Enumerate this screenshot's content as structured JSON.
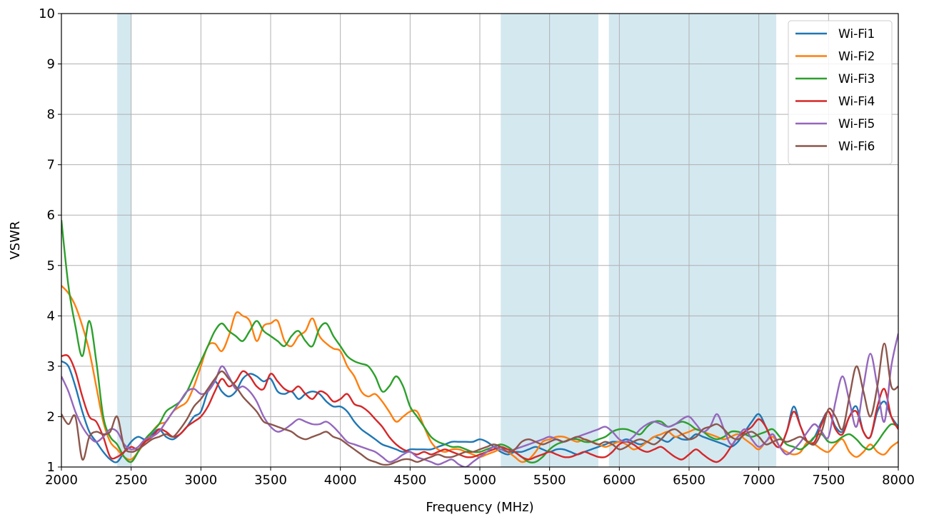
{
  "chart_data": {
    "type": "line",
    "title": "",
    "xlabel": "Frequency (MHz)",
    "ylabel": "VSWR",
    "xlim": [
      2000,
      8000
    ],
    "ylim": [
      1,
      10
    ],
    "xticks": [
      2000,
      2500,
      3000,
      3500,
      4000,
      4500,
      5000,
      5500,
      6000,
      6500,
      7000,
      7500,
      8000
    ],
    "yticks": [
      1,
      2,
      3,
      4,
      5,
      6,
      7,
      8,
      9,
      10
    ],
    "xtick_labels": [
      "2000",
      "2500",
      "3000",
      "3500",
      "4000",
      "4500",
      "5000",
      "5500",
      "6000",
      "6500",
      "7000",
      "7500",
      "8000"
    ],
    "ytick_labels": [
      "1",
      "2",
      "3",
      "4",
      "5",
      "6",
      "7",
      "8",
      "9",
      "10"
    ],
    "grid": true,
    "legend_position": "top-right",
    "shaded_bands": [
      {
        "from": 2400,
        "to": 2500,
        "color": "#d4e8f0"
      },
      {
        "from": 5150,
        "to": 5850,
        "color": "#d4e8f0"
      },
      {
        "from": 5925,
        "to": 7125,
        "color": "#d4e8f0"
      }
    ],
    "x": [
      2000,
      2050,
      2100,
      2150,
      2200,
      2250,
      2300,
      2350,
      2400,
      2450,
      2500,
      2550,
      2600,
      2650,
      2700,
      2750,
      2800,
      2850,
      2900,
      2950,
      3000,
      3050,
      3100,
      3150,
      3200,
      3250,
      3300,
      3350,
      3400,
      3450,
      3500,
      3550,
      3600,
      3650,
      3700,
      3750,
      3800,
      3850,
      3900,
      3950,
      4000,
      4050,
      4100,
      4150,
      4200,
      4250,
      4300,
      4350,
      4400,
      4450,
      4500,
      4550,
      4600,
      4650,
      4700,
      4750,
      4800,
      4850,
      4900,
      4950,
      5000,
      5050,
      5100,
      5150,
      5200,
      5250,
      5300,
      5350,
      5400,
      5450,
      5500,
      5550,
      5600,
      5650,
      5700,
      5750,
      5800,
      5850,
      5900,
      5950,
      6000,
      6050,
      6100,
      6150,
      6200,
      6250,
      6300,
      6350,
      6400,
      6450,
      6500,
      6550,
      6600,
      6650,
      6700,
      6750,
      6800,
      6850,
      6900,
      6950,
      7000,
      7050,
      7100,
      7150,
      7200,
      7250,
      7300,
      7350,
      7400,
      7450,
      7500,
      7550,
      7600,
      7650,
      7700,
      7750,
      7800,
      7850,
      7900,
      7950,
      8000
    ],
    "series": [
      {
        "name": "Wi-Fi1",
        "color": "#1f77b4",
        "values": [
          3.1,
          3.0,
          2.6,
          2.1,
          1.7,
          1.5,
          1.3,
          1.15,
          1.1,
          1.3,
          1.5,
          1.6,
          1.55,
          1.65,
          1.75,
          1.6,
          1.55,
          1.65,
          1.8,
          2.0,
          2.1,
          2.5,
          2.7,
          2.5,
          2.4,
          2.5,
          2.75,
          2.85,
          2.8,
          2.7,
          2.75,
          2.5,
          2.45,
          2.5,
          2.35,
          2.45,
          2.5,
          2.45,
          2.3,
          2.2,
          2.2,
          2.1,
          1.9,
          1.75,
          1.65,
          1.55,
          1.45,
          1.4,
          1.35,
          1.3,
          1.35,
          1.35,
          1.35,
          1.35,
          1.4,
          1.45,
          1.5,
          1.5,
          1.5,
          1.5,
          1.55,
          1.5,
          1.4,
          1.3,
          1.25,
          1.3,
          1.3,
          1.35,
          1.4,
          1.35,
          1.3,
          1.35,
          1.35,
          1.3,
          1.25,
          1.3,
          1.35,
          1.4,
          1.45,
          1.5,
          1.5,
          1.55,
          1.5,
          1.45,
          1.5,
          1.6,
          1.55,
          1.5,
          1.6,
          1.55,
          1.55,
          1.65,
          1.6,
          1.55,
          1.5,
          1.45,
          1.4,
          1.5,
          1.7,
          1.9,
          2.05,
          1.8,
          1.5,
          1.4,
          1.7,
          2.2,
          1.8,
          1.5,
          1.6,
          1.9,
          2.1,
          1.8,
          1.7,
          2.0,
          2.2,
          1.7,
          1.6,
          2.1,
          2.3,
          2.0,
          1.8
        ]
      },
      {
        "name": "Wi-Fi2",
        "color": "#ff7f0e",
        "values": [
          4.6,
          4.45,
          4.2,
          3.8,
          3.3,
          2.6,
          1.9,
          1.5,
          1.35,
          1.2,
          1.15,
          1.3,
          1.5,
          1.7,
          1.85,
          1.9,
          2.1,
          2.2,
          2.3,
          2.6,
          3.0,
          3.4,
          3.45,
          3.3,
          3.6,
          4.05,
          4.0,
          3.9,
          3.5,
          3.8,
          3.85,
          3.9,
          3.5,
          3.4,
          3.6,
          3.7,
          3.95,
          3.6,
          3.45,
          3.35,
          3.3,
          3.0,
          2.8,
          2.5,
          2.4,
          2.45,
          2.3,
          2.1,
          1.9,
          2.0,
          2.1,
          2.1,
          1.8,
          1.5,
          1.35,
          1.3,
          1.35,
          1.35,
          1.3,
          1.25,
          1.2,
          1.25,
          1.3,
          1.35,
          1.3,
          1.2,
          1.1,
          1.15,
          1.3,
          1.5,
          1.55,
          1.6,
          1.6,
          1.55,
          1.5,
          1.55,
          1.5,
          1.45,
          1.4,
          1.45,
          1.5,
          1.45,
          1.35,
          1.4,
          1.5,
          1.6,
          1.65,
          1.7,
          1.6,
          1.65,
          1.7,
          1.75,
          1.7,
          1.65,
          1.6,
          1.55,
          1.6,
          1.65,
          1.55,
          1.45,
          1.35,
          1.5,
          1.6,
          1.4,
          1.3,
          1.25,
          1.3,
          1.5,
          1.45,
          1.35,
          1.3,
          1.45,
          1.55,
          1.3,
          1.2,
          1.3,
          1.45,
          1.3,
          1.25,
          1.4,
          1.5
        ]
      },
      {
        "name": "Wi-Fi3",
        "color": "#2ca02c",
        "values": [
          5.9,
          4.6,
          3.8,
          3.2,
          3.9,
          3.1,
          2.0,
          1.6,
          1.45,
          1.2,
          1.1,
          1.3,
          1.55,
          1.7,
          1.85,
          2.1,
          2.2,
          2.3,
          2.5,
          2.8,
          3.1,
          3.4,
          3.7,
          3.85,
          3.7,
          3.6,
          3.5,
          3.7,
          3.9,
          3.7,
          3.6,
          3.5,
          3.4,
          3.6,
          3.7,
          3.5,
          3.4,
          3.75,
          3.85,
          3.6,
          3.4,
          3.2,
          3.1,
          3.05,
          3.0,
          2.8,
          2.5,
          2.6,
          2.8,
          2.6,
          2.2,
          2.0,
          1.8,
          1.6,
          1.5,
          1.45,
          1.4,
          1.4,
          1.35,
          1.3,
          1.3,
          1.35,
          1.4,
          1.45,
          1.4,
          1.3,
          1.2,
          1.1,
          1.1,
          1.2,
          1.35,
          1.45,
          1.5,
          1.55,
          1.55,
          1.5,
          1.5,
          1.55,
          1.6,
          1.7,
          1.75,
          1.75,
          1.7,
          1.65,
          1.8,
          1.9,
          1.9,
          1.8,
          1.85,
          1.9,
          1.85,
          1.75,
          1.7,
          1.6,
          1.55,
          1.6,
          1.7,
          1.7,
          1.65,
          1.6,
          1.65,
          1.7,
          1.75,
          1.6,
          1.45,
          1.4,
          1.35,
          1.45,
          1.6,
          1.65,
          1.5,
          1.5,
          1.6,
          1.65,
          1.55,
          1.4,
          1.35,
          1.5,
          1.7,
          1.85,
          1.8
        ]
      },
      {
        "name": "Wi-Fi4",
        "color": "#d62728",
        "values": [
          3.2,
          3.2,
          2.9,
          2.4,
          2.0,
          1.9,
          1.6,
          1.2,
          1.2,
          1.3,
          1.4,
          1.35,
          1.5,
          1.6,
          1.75,
          1.7,
          1.6,
          1.65,
          1.8,
          1.9,
          2.0,
          2.2,
          2.5,
          2.75,
          2.6,
          2.7,
          2.9,
          2.8,
          2.6,
          2.55,
          2.85,
          2.7,
          2.55,
          2.5,
          2.6,
          2.45,
          2.35,
          2.5,
          2.45,
          2.3,
          2.35,
          2.45,
          2.25,
          2.2,
          2.1,
          1.95,
          1.8,
          1.6,
          1.45,
          1.35,
          1.3,
          1.25,
          1.3,
          1.25,
          1.3,
          1.35,
          1.3,
          1.25,
          1.2,
          1.2,
          1.25,
          1.3,
          1.35,
          1.4,
          1.35,
          1.3,
          1.2,
          1.15,
          1.2,
          1.25,
          1.3,
          1.25,
          1.2,
          1.2,
          1.25,
          1.3,
          1.25,
          1.2,
          1.2,
          1.3,
          1.45,
          1.5,
          1.45,
          1.35,
          1.3,
          1.35,
          1.4,
          1.3,
          1.2,
          1.15,
          1.25,
          1.35,
          1.25,
          1.15,
          1.1,
          1.2,
          1.4,
          1.6,
          1.7,
          1.8,
          1.95,
          1.8,
          1.5,
          1.4,
          1.7,
          2.1,
          1.8,
          1.5,
          1.5,
          1.85,
          2.1,
          1.75,
          1.65,
          2.0,
          2.1,
          1.7,
          1.6,
          2.2,
          2.55,
          2.0,
          1.75
        ]
      },
      {
        "name": "Wi-Fi5",
        "color": "#9467bd",
        "values": [
          2.8,
          2.5,
          2.1,
          1.8,
          1.6,
          1.5,
          1.6,
          1.75,
          1.7,
          1.45,
          1.35,
          1.4,
          1.55,
          1.6,
          1.7,
          1.9,
          2.1,
          2.3,
          2.5,
          2.55,
          2.45,
          2.5,
          2.7,
          3.0,
          2.8,
          2.55,
          2.6,
          2.5,
          2.3,
          2.0,
          1.8,
          1.7,
          1.75,
          1.85,
          1.95,
          1.9,
          1.85,
          1.85,
          1.9,
          1.8,
          1.65,
          1.5,
          1.45,
          1.4,
          1.35,
          1.3,
          1.2,
          1.1,
          1.15,
          1.25,
          1.3,
          1.2,
          1.15,
          1.1,
          1.05,
          1.1,
          1.15,
          1.05,
          1.0,
          1.1,
          1.2,
          1.3,
          1.4,
          1.35,
          1.3,
          1.35,
          1.4,
          1.45,
          1.5,
          1.55,
          1.6,
          1.55,
          1.5,
          1.55,
          1.6,
          1.65,
          1.7,
          1.75,
          1.8,
          1.7,
          1.55,
          1.5,
          1.6,
          1.75,
          1.85,
          1.9,
          1.85,
          1.8,
          1.85,
          1.95,
          2.0,
          1.85,
          1.7,
          1.8,
          2.05,
          1.75,
          1.45,
          1.6,
          1.75,
          1.55,
          1.4,
          1.5,
          1.65,
          1.4,
          1.25,
          1.35,
          1.5,
          1.7,
          1.85,
          1.7,
          1.6,
          2.3,
          2.8,
          2.3,
          1.8,
          2.6,
          3.25,
          2.6,
          1.9,
          3.0,
          3.65
        ]
      },
      {
        "name": "Wi-Fi6",
        "color": "#8c564b",
        "values": [
          2.05,
          1.85,
          2.0,
          1.15,
          1.6,
          1.7,
          1.65,
          1.7,
          2.0,
          1.4,
          1.3,
          1.35,
          1.45,
          1.55,
          1.6,
          1.65,
          1.6,
          1.75,
          1.95,
          2.2,
          2.35,
          2.55,
          2.75,
          2.9,
          2.75,
          2.6,
          2.4,
          2.25,
          2.1,
          1.9,
          1.85,
          1.8,
          1.75,
          1.7,
          1.6,
          1.55,
          1.6,
          1.65,
          1.7,
          1.6,
          1.55,
          1.45,
          1.35,
          1.25,
          1.15,
          1.1,
          1.05,
          1.05,
          1.1,
          1.15,
          1.15,
          1.1,
          1.15,
          1.2,
          1.25,
          1.2,
          1.2,
          1.25,
          1.3,
          1.3,
          1.35,
          1.4,
          1.45,
          1.4,
          1.3,
          1.35,
          1.5,
          1.55,
          1.5,
          1.45,
          1.5,
          1.55,
          1.5,
          1.55,
          1.6,
          1.55,
          1.5,
          1.45,
          1.5,
          1.45,
          1.35,
          1.4,
          1.5,
          1.55,
          1.5,
          1.45,
          1.55,
          1.7,
          1.75,
          1.65,
          1.55,
          1.6,
          1.75,
          1.8,
          1.85,
          1.75,
          1.6,
          1.55,
          1.65,
          1.7,
          1.6,
          1.45,
          1.5,
          1.55,
          1.5,
          1.55,
          1.6,
          1.5,
          1.45,
          1.7,
          2.15,
          2.0,
          1.75,
          2.4,
          3.0,
          2.5,
          2.0,
          2.6,
          3.45,
          2.6,
          2.6
        ]
      }
    ]
  }
}
